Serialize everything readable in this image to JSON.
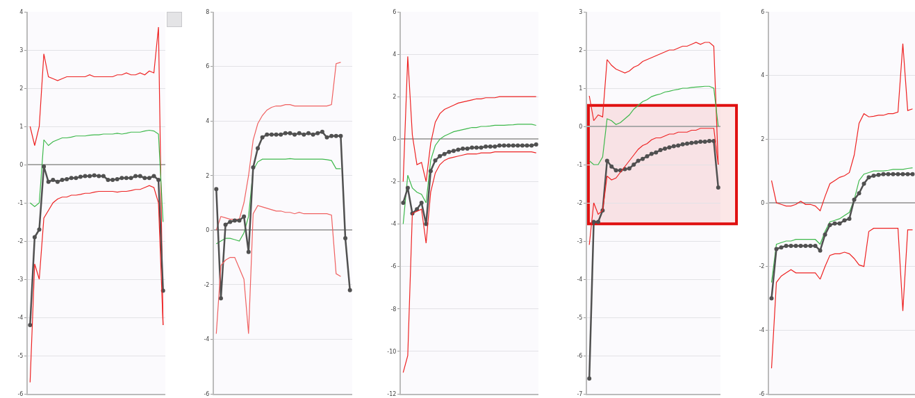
{
  "chart_data": [
    {
      "type": "line",
      "categories": [
        null,
        null,
        null,
        null,
        null,
        null,
        null,
        null,
        null,
        null,
        null,
        null,
        null,
        null,
        null,
        null,
        null,
        null,
        null,
        null,
        null,
        null,
        null,
        null,
        null,
        null,
        null,
        null,
        null,
        null
      ],
      "ylim": [
        -6,
        4
      ],
      "yticks": [
        -6,
        -5,
        -4,
        -3,
        -2,
        -1,
        0,
        1,
        2,
        3,
        4
      ],
      "grid": "y",
      "tick_labels": "y",
      "series": [
        {
          "color": "#ee2222",
          "values": [
            1.0,
            0.5,
            1.0,
            2.9,
            2.3,
            2.25,
            2.2,
            2.25,
            2.3,
            2.3,
            2.3,
            2.3,
            2.3,
            2.35,
            2.3,
            2.3,
            2.3,
            2.3,
            2.3,
            2.35,
            2.35,
            2.4,
            2.35,
            2.35,
            2.4,
            2.35,
            2.45,
            2.4,
            3.6,
            -4.2
          ]
        },
        {
          "color": "#3cb84a",
          "values": [
            -1.0,
            -1.1,
            -1.0,
            0.65,
            0.5,
            0.6,
            0.65,
            0.7,
            0.7,
            0.72,
            0.75,
            0.75,
            0.75,
            0.77,
            0.78,
            0.78,
            0.8,
            0.8,
            0.8,
            0.82,
            0.8,
            0.82,
            0.85,
            0.85,
            0.85,
            0.88,
            0.9,
            0.88,
            0.8,
            -1.5
          ]
        },
        {
          "color": "#505050",
          "marker": "circle",
          "values": [
            -4.2,
            -1.9,
            -1.7,
            -0.05,
            -0.45,
            -0.4,
            -0.45,
            -0.4,
            -0.38,
            -0.35,
            -0.35,
            -0.32,
            -0.3,
            -0.3,
            -0.28,
            -0.3,
            -0.3,
            -0.4,
            -0.4,
            -0.38,
            -0.35,
            -0.35,
            -0.35,
            -0.3,
            -0.3,
            -0.35,
            -0.35,
            -0.3,
            -0.4,
            -3.3
          ]
        },
        {
          "color": "#ee2222",
          "values": [
            -5.7,
            -2.6,
            -3.0,
            -1.4,
            -1.2,
            -1.0,
            -0.9,
            -0.85,
            -0.85,
            -0.8,
            -0.8,
            -0.78,
            -0.75,
            -0.75,
            -0.72,
            -0.7,
            -0.7,
            -0.7,
            -0.7,
            -0.72,
            -0.7,
            -0.7,
            -0.68,
            -0.65,
            -0.65,
            -0.6,
            -0.55,
            -0.6,
            -1.0,
            -4.2
          ]
        }
      ]
    },
    {
      "type": "line",
      "categories": [
        null,
        null,
        null,
        null,
        null,
        null,
        null,
        null,
        null,
        null,
        null,
        null,
        null,
        null,
        null,
        null,
        null,
        null,
        null,
        null,
        null,
        null,
        null,
        null,
        null,
        null,
        null,
        null,
        null,
        null
      ],
      "ylim": [
        -6,
        8
      ],
      "yticks": [
        -6,
        -4,
        -2,
        0,
        2,
        4,
        6,
        8
      ],
      "grid": "y",
      "tick_labels": "y",
      "series": [
        {
          "color": "#f06060",
          "values": [
            0,
            0.5,
            0.45,
            0.4,
            0.4,
            0.4,
            1.0,
            2.0,
            3.3,
            3.9,
            4.2,
            4.4,
            4.5,
            4.55,
            4.55,
            4.6,
            4.6,
            4.55,
            4.55,
            4.55,
            4.55,
            4.55,
            4.55,
            4.55,
            4.55,
            4.6,
            6.1,
            6.15,
            null,
            null
          ]
        },
        {
          "color": "#3cb84a",
          "values": [
            -0.5,
            -0.4,
            -0.3,
            -0.3,
            -0.35,
            -0.4,
            -0.1,
            0.5,
            2.2,
            2.5,
            2.6,
            2.6,
            2.6,
            2.6,
            2.6,
            2.6,
            2.62,
            2.6,
            2.6,
            2.6,
            2.6,
            2.6,
            2.6,
            2.6,
            2.58,
            2.55,
            2.25,
            2.25,
            null,
            null
          ]
        },
        {
          "color": "#505050",
          "marker": "circle",
          "values": [
            1.5,
            -2.5,
            0.2,
            0.3,
            0.35,
            0.35,
            0.5,
            -0.8,
            2.3,
            3.0,
            3.4,
            3.5,
            3.5,
            3.5,
            3.5,
            3.55,
            3.55,
            3.5,
            3.55,
            3.5,
            3.55,
            3.5,
            3.55,
            3.6,
            3.4,
            3.45,
            3.45,
            3.45,
            -0.3,
            -2.2
          ]
        },
        {
          "color": "#f06060",
          "values": [
            -3.8,
            -1.3,
            -1.1,
            -1.0,
            -1.0,
            -1.4,
            -1.8,
            -3.8,
            0.6,
            0.9,
            0.85,
            0.8,
            0.75,
            0.7,
            0.7,
            0.65,
            0.65,
            0.6,
            0.65,
            0.6,
            0.6,
            0.6,
            0.6,
            0.6,
            0.6,
            0.55,
            -1.6,
            -1.7,
            null,
            null
          ]
        }
      ]
    },
    {
      "type": "line",
      "categories": [
        null,
        null,
        null,
        null,
        null,
        null,
        null,
        null,
        null,
        null,
        null,
        null,
        null,
        null,
        null,
        null,
        null,
        null,
        null,
        null,
        null,
        null,
        null,
        null,
        null,
        null,
        null,
        null,
        null,
        null
      ],
      "ylim": [
        -12,
        6
      ],
      "yticks": [
        -12,
        -10,
        -8,
        -6,
        -4,
        -2,
        0,
        2,
        4,
        6
      ],
      "grid": "y",
      "tick_labels": "y",
      "series": [
        {
          "color": "#ee2222",
          "values": [
            -2,
            3.9,
            0.2,
            -1.2,
            -1.1,
            -2.0,
            -0.2,
            0.8,
            1.2,
            1.4,
            1.5,
            1.6,
            1.7,
            1.75,
            1.8,
            1.85,
            1.9,
            1.9,
            1.95,
            1.95,
            1.95,
            2.0,
            2.0,
            2.0,
            2.0,
            2.0,
            2.0,
            2.0,
            2.0,
            2.0
          ]
        },
        {
          "color": "#3cb84a",
          "values": [
            -4,
            -1.7,
            -2.3,
            -2.5,
            -2.6,
            -3.0,
            -1.0,
            -0.3,
            0.0,
            0.15,
            0.25,
            0.35,
            0.4,
            0.45,
            0.5,
            0.55,
            0.55,
            0.6,
            0.6,
            0.62,
            0.65,
            0.65,
            0.65,
            0.67,
            0.68,
            0.7,
            0.7,
            0.7,
            0.7,
            0.65
          ]
        },
        {
          "color": "#505050",
          "marker": "circle",
          "values": [
            -3,
            -2.3,
            -3.5,
            -3.3,
            -3.0,
            -4.0,
            -1.5,
            -1.0,
            -0.8,
            -0.7,
            -0.6,
            -0.55,
            -0.5,
            -0.45,
            -0.45,
            -0.4,
            -0.4,
            -0.4,
            -0.35,
            -0.35,
            -0.35,
            -0.3,
            -0.3,
            -0.3,
            -0.3,
            -0.3,
            -0.3,
            -0.3,
            -0.3,
            -0.25
          ]
        },
        {
          "color": "#ee2222",
          "values": [
            -11,
            -10.2,
            -3.5,
            -3.4,
            -3.3,
            -4.9,
            -2.5,
            -1.6,
            -1.2,
            -1.0,
            -0.9,
            -0.85,
            -0.8,
            -0.75,
            -0.7,
            -0.7,
            -0.7,
            -0.65,
            -0.65,
            -0.65,
            -0.6,
            -0.6,
            -0.6,
            -0.6,
            -0.6,
            -0.6,
            -0.6,
            -0.6,
            -0.6,
            -0.65
          ]
        }
      ]
    },
    {
      "type": "line",
      "categories": [
        null,
        null,
        null,
        null,
        null,
        null,
        null,
        null,
        null,
        null,
        null,
        null,
        null,
        null,
        null,
        null,
        null,
        null,
        null,
        null,
        null,
        null,
        null,
        null,
        null,
        null,
        null,
        null,
        null,
        null
      ],
      "ylim": [
        -7,
        3
      ],
      "yticks": [
        -7,
        -6,
        -5,
        -4,
        -3,
        -2,
        -1,
        0,
        1,
        2,
        3
      ],
      "grid": "y",
      "tick_labels": "y",
      "bands": [
        {
          "axis": "y",
          "from": -2.55,
          "to": 0.55,
          "color": "#e01010"
        }
      ],
      "series": [
        {
          "color": "#ee2222",
          "values": [
            0.8,
            0.15,
            0.3,
            0.25,
            1.75,
            1.6,
            1.5,
            1.45,
            1.4,
            1.45,
            1.55,
            1.6,
            1.7,
            1.75,
            1.8,
            1.85,
            1.9,
            1.95,
            2.0,
            2.0,
            2.05,
            2.1,
            2.1,
            2.15,
            2.2,
            2.15,
            2.2,
            2.2,
            2.1,
            -1.0
          ]
        },
        {
          "color": "#3cb84a",
          "values": [
            -0.9,
            -1.0,
            -1.0,
            -0.8,
            0.2,
            0.15,
            0.05,
            0.1,
            0.2,
            0.3,
            0.45,
            0.55,
            0.65,
            0.7,
            0.78,
            0.82,
            0.85,
            0.9,
            0.92,
            0.95,
            0.97,
            1.0,
            1.0,
            1.02,
            1.03,
            1.04,
            1.05,
            1.05,
            1.0,
            0.0
          ]
        },
        {
          "color": "#505050",
          "marker": "circle",
          "values": [
            -6.6,
            -2.5,
            -2.5,
            -2.2,
            -0.9,
            -1.05,
            -1.15,
            -1.15,
            -1.12,
            -1.1,
            -1.0,
            -0.9,
            -0.85,
            -0.78,
            -0.72,
            -0.68,
            -0.62,
            -0.58,
            -0.55,
            -0.52,
            -0.5,
            -0.47,
            -0.45,
            -0.43,
            -0.42,
            -0.4,
            -0.4,
            -0.38,
            -0.38,
            -1.6
          ]
        },
        {
          "color": "#ee2222",
          "values": [
            -3.1,
            -2.0,
            -2.3,
            -2.2,
            -1.3,
            -1.4,
            -1.35,
            -1.2,
            -1.05,
            -0.9,
            -0.75,
            -0.6,
            -0.5,
            -0.45,
            -0.35,
            -0.3,
            -0.3,
            -0.25,
            -0.2,
            -0.2,
            -0.15,
            -0.15,
            -0.15,
            -0.1,
            -0.1,
            -0.05,
            -0.05,
            -0.05,
            -0.05,
            -1.0
          ]
        }
      ]
    },
    {
      "type": "line",
      "categories": [
        null,
        null,
        null,
        null,
        null,
        null,
        null,
        null,
        null,
        null,
        null,
        null,
        null,
        null,
        null,
        null,
        null,
        null,
        null,
        null,
        null,
        null,
        null,
        null,
        null,
        null,
        null,
        null,
        null,
        null
      ],
      "ylim": [
        -6,
        6
      ],
      "yticks": [
        -6,
        -4,
        -2,
        0,
        2,
        4,
        6
      ],
      "grid": "y",
      "tick_labels": "y",
      "series": [
        {
          "color": "#ee2222",
          "values": [
            0.7,
            0,
            -0.05,
            -0.1,
            -0.1,
            -0.05,
            0.05,
            -0.05,
            -0.05,
            -0.1,
            -0.25,
            0.2,
            0.6,
            0.7,
            0.8,
            0.85,
            0.95,
            1.5,
            2.5,
            2.8,
            2.7,
            2.72,
            2.75,
            2.75,
            2.8,
            2.8,
            2.85,
            5.0,
            2.9,
            2.95
          ]
        },
        {
          "color": "#3cb84a",
          "values": [
            -2.5,
            -1.3,
            -1.25,
            -1.2,
            -1.2,
            -1.15,
            -1.15,
            -1.15,
            -1.15,
            -1.15,
            -1.3,
            -0.9,
            -0.6,
            -0.55,
            -0.5,
            -0.4,
            -0.3,
            0.1,
            0.7,
            0.9,
            0.95,
            1.0,
            1.0,
            1.0,
            1.02,
            1.05,
            1.05,
            1.05,
            1.08,
            1.1
          ]
        },
        {
          "color": "#505050",
          "marker": "circle",
          "values": [
            -3.0,
            -1.45,
            -1.4,
            -1.35,
            -1.35,
            -1.35,
            -1.35,
            -1.35,
            -1.35,
            -1.35,
            -1.5,
            -1.0,
            -0.7,
            -0.65,
            -0.65,
            -0.55,
            -0.5,
            0.1,
            0.3,
            0.6,
            0.8,
            0.85,
            0.88,
            0.9,
            0.9,
            0.9,
            0.9,
            0.9,
            0.9,
            0.9
          ]
        },
        {
          "color": "#ee2222",
          "values": [
            -5.2,
            -2.5,
            -2.3,
            -2.2,
            -2.1,
            -2.2,
            -2.2,
            -2.2,
            -2.2,
            -2.2,
            -2.4,
            -2.0,
            -1.65,
            -1.6,
            -1.6,
            -1.55,
            -1.6,
            -1.75,
            -1.95,
            -2.0,
            -0.9,
            -0.8,
            -0.8,
            -0.8,
            -0.8,
            -0.8,
            -0.8,
            -3.4,
            -0.85,
            -0.85
          ]
        }
      ]
    }
  ]
}
